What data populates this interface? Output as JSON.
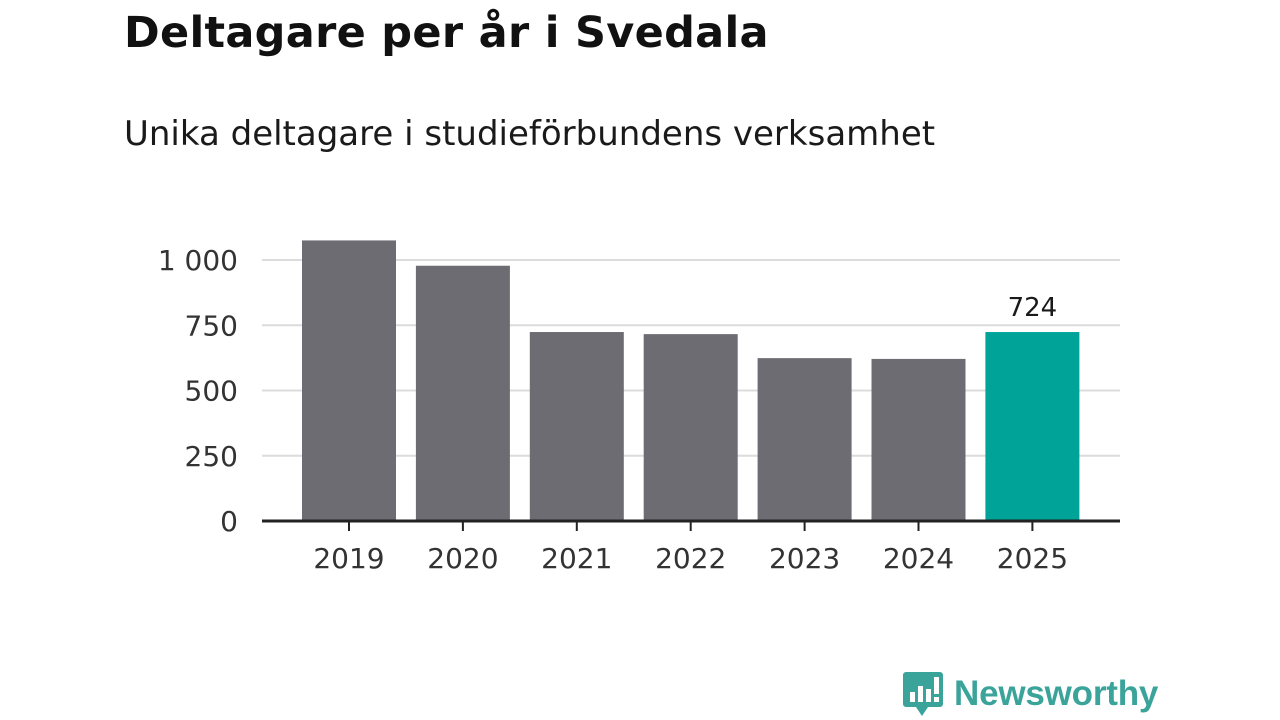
{
  "chart_data": {
    "type": "bar",
    "title": "Deltagare per år i Svedala",
    "subtitle": "Unika deltagare i studieförbundens verksamhet",
    "categories": [
      "2019",
      "2020",
      "2021",
      "2022",
      "2023",
      "2024",
      "2025"
    ],
    "values": [
      1075,
      978,
      724,
      716,
      624,
      621,
      724
    ],
    "highlight_index": 6,
    "highlight_label": "724",
    "yticks": [
      0,
      250,
      500,
      750,
      1000
    ],
    "ytick_labels": [
      "0",
      "250",
      "500",
      "750",
      "1 000"
    ],
    "ylim": [
      0,
      1000
    ],
    "xlabel": "",
    "ylabel": "",
    "grid": true,
    "colors": {
      "bar": "#6d6c72",
      "highlight": "#00a398",
      "grid": "#dcdcdc",
      "axis": "#222222"
    }
  },
  "brand": {
    "name": "Newsworthy",
    "color": "#3aa39a",
    "icon": "newsworthy-logo-icon"
  }
}
